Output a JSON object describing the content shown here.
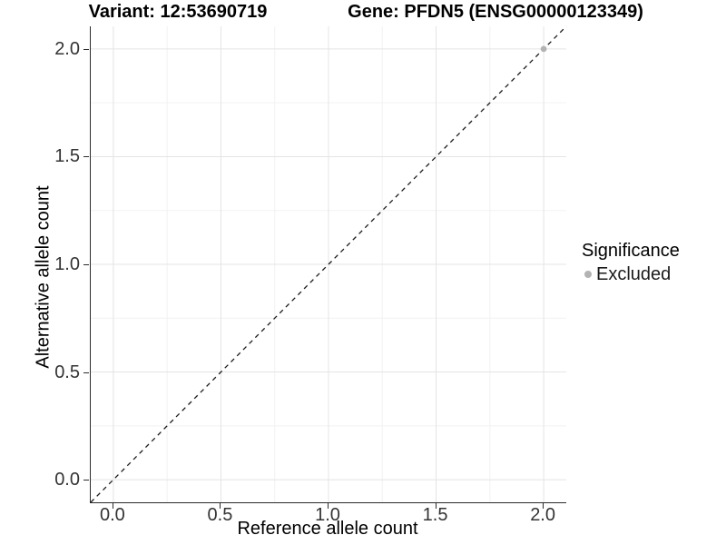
{
  "chart_data": {
    "type": "scatter",
    "titles": {
      "left": "Variant: 12:53690719",
      "right": "Gene: PFDN5 (ENSG00000123349)"
    },
    "xlabel": "Reference allele count",
    "ylabel": "Alternative allele count",
    "xlim": [
      -0.105,
      2.105
    ],
    "ylim": [
      -0.105,
      2.105
    ],
    "x_ticks": {
      "values": [
        0,
        0.5,
        1,
        1.5,
        2
      ],
      "labels": [
        "0.0",
        "0.5",
        "1.0",
        "1.5",
        "2.0"
      ]
    },
    "y_ticks": {
      "values": [
        0,
        0.5,
        1,
        1.5,
        2
      ],
      "labels": [
        "0.0",
        "0.5",
        "1.0",
        "1.5",
        "2.0"
      ]
    },
    "minor_ticks": [
      0.25,
      0.75,
      1.25,
      1.75
    ],
    "grid": "on",
    "legend_position": "right",
    "reference_line": {
      "type": "identity y=x",
      "style": "dashed",
      "color": "#1a1a1a"
    },
    "series": [
      {
        "name": "Excluded",
        "color": "#b3b3b3",
        "points": [
          {
            "x": 2.0,
            "y": 2.0
          }
        ]
      }
    ],
    "legend": {
      "title": "Significance",
      "items": [
        {
          "label": "Excluded",
          "color": "#b3b3b3"
        }
      ]
    }
  },
  "colors": {
    "background": "#ffffff",
    "grid_major": "#e4e4e4",
    "grid_minor": "#f2f2f2",
    "axis_line": "#2b2b2b",
    "tick_text": "#333333",
    "title_text": "#000000",
    "dashed_line": "#1a1a1a",
    "excluded_point": "#b3b3b3"
  }
}
